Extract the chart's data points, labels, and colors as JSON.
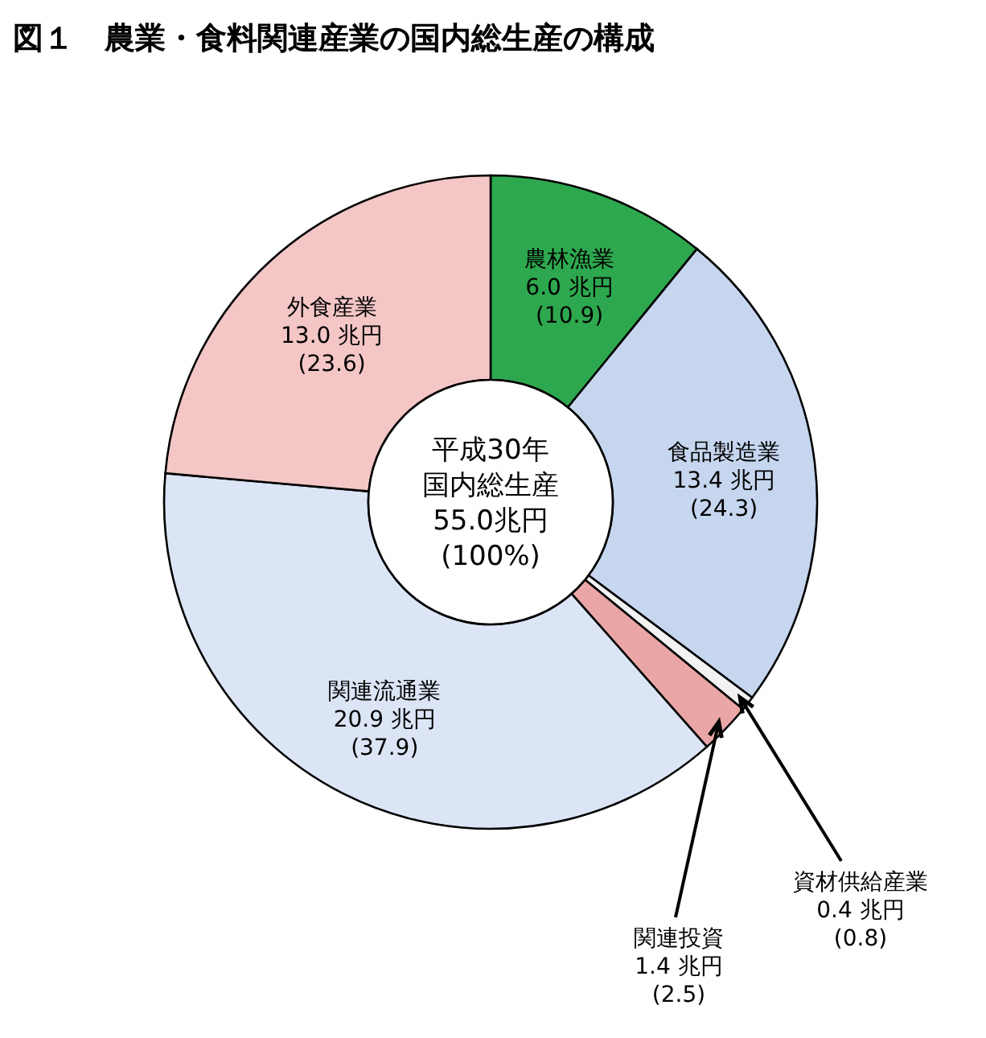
{
  "chart_data": {
    "type": "donut",
    "title": "図１　農業・食料関連産業の国内総生産の構成",
    "categories": [
      "農林漁業",
      "食品製造業",
      "資材供給産業",
      "関連投資",
      "関連流通業",
      "外食産業"
    ],
    "values": [
      6.0,
      13.4,
      0.4,
      1.4,
      20.9,
      13.0
    ],
    "value_labels": [
      "6.0 兆円\n(10.9)",
      "13.4 兆円\n(24.3)",
      "0.4 兆円\n(0.8)",
      "1.4 兆円\n(2.5)",
      "20.9 兆円\n(37.9)",
      "13.0 兆円\n(23.6)"
    ],
    "colors": [
      "#2ea84f",
      "#c6d6ef",
      "#f2f2f2",
      "#eaa6a6",
      "#dbe5f5",
      "#f4c6c6"
    ],
    "annotations": [
      "平成30年",
      "国内総生産",
      "55.0兆円",
      "(100%)"
    ]
  }
}
